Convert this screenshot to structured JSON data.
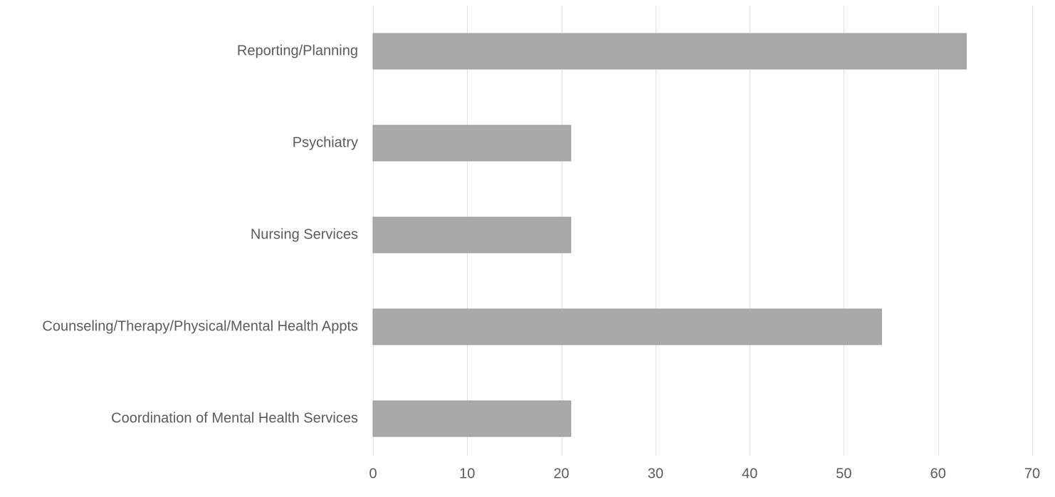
{
  "chart_data": {
    "type": "bar",
    "orientation": "horizontal",
    "title": "",
    "xlabel": "",
    "ylabel": "",
    "categories": [
      "Reporting/Planning",
      "Psychiatry",
      "Nursing Services",
      "Counseling/Therapy/Physical/Mental Health Appts",
      "Coordination of Mental Health Services"
    ],
    "values": [
      63,
      21,
      21,
      54,
      21
    ],
    "xlim": [
      0,
      70
    ],
    "xticks": [
      0,
      10,
      20,
      30,
      40,
      50,
      60,
      70
    ],
    "grid": "vertical",
    "legend": "none",
    "colors": {
      "bar": "#a9a9a9",
      "bar_edge": "#9a9a9a",
      "grid": "#e2e2e2",
      "text": "#5b5b5b"
    }
  }
}
